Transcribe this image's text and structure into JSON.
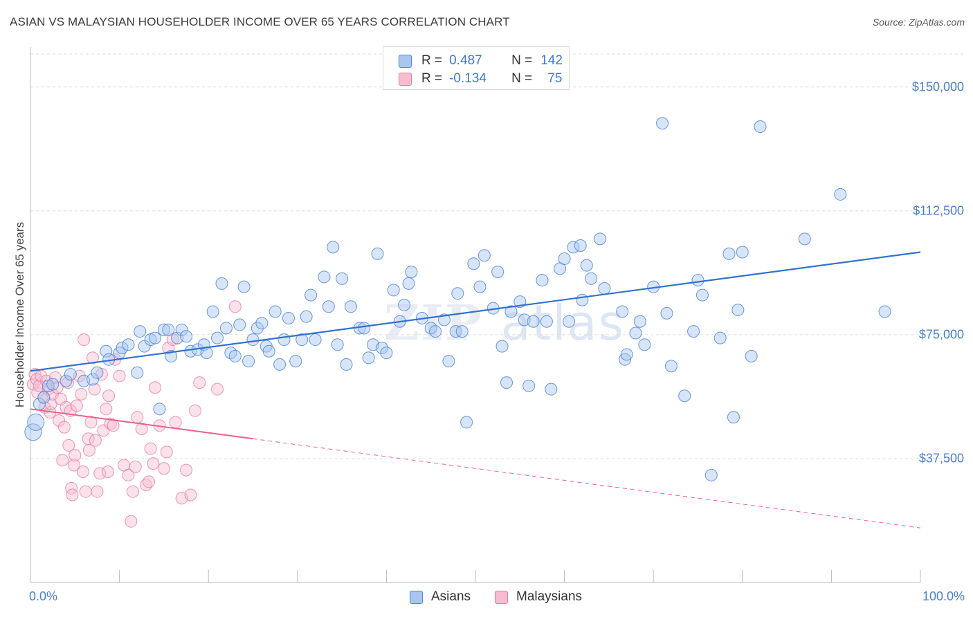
{
  "header": {
    "title": "ASIAN VS MALAYSIAN HOUSEHOLDER INCOME OVER 65 YEARS CORRELATION CHART",
    "source": "Source: ZipAtlas.com"
  },
  "watermark": {
    "zip": "ZIP",
    "atlas": "atlas"
  },
  "stats": [
    {
      "r_label": "R =",
      "r_value": "0.487",
      "n_label": "N =",
      "n_value": "142"
    },
    {
      "r_label": "R =",
      "r_value": "-0.134",
      "n_label": "N =",
      "n_value": "75"
    }
  ],
  "legend": {
    "asians": "Asians",
    "malaysians": "Malaysians"
  },
  "colors": {
    "asian_fill": "#a8c6ef",
    "asian_stroke": "#4a86d8",
    "asian_line": "#2f72d0",
    "malaysian_fill": "#f7bcd0",
    "malaysian_stroke": "#e87aa0",
    "malaysian_line": "#e8608c",
    "tick_text": "#4a7fd0",
    "grid": "#dcdcdc"
  },
  "chart_data": {
    "type": "scatter",
    "title": "ASIAN VS MALAYSIAN HOUSEHOLDER INCOME OVER 65 YEARS CORRELATION CHART",
    "xlabel": "",
    "ylabel": "Householder Income Over 65 years",
    "xlim": [
      0,
      100
    ],
    "ylim": [
      0,
      160000
    ],
    "x_tick_labels": [
      "0.0%",
      "100.0%"
    ],
    "y_ticks": [
      37500,
      75000,
      112500,
      150000
    ],
    "y_tick_labels": [
      "$37,500",
      "$75,000",
      "$112,500",
      "$150,000"
    ],
    "grid": "horizontal dashed",
    "legend_position": "bottom-center",
    "series": [
      {
        "name": "Asians",
        "r": 0.487,
        "n": 142,
        "trend": {
          "x": [
            0,
            100
          ],
          "y": [
            64000,
            100000
          ]
        },
        "points": [
          [
            0.3,
            45500
          ],
          [
            0.6,
            48500
          ],
          [
            1.0,
            54000
          ],
          [
            1.5,
            56000
          ],
          [
            2.0,
            59500
          ],
          [
            2.5,
            60000
          ],
          [
            4.0,
            61000
          ],
          [
            4.5,
            63000
          ],
          [
            6.0,
            61000
          ],
          [
            7.0,
            61500
          ],
          [
            7.5,
            63500
          ],
          [
            8.5,
            70000
          ],
          [
            8.8,
            67500
          ],
          [
            10.0,
            69500
          ],
          [
            10.3,
            71000
          ],
          [
            11.0,
            72000
          ],
          [
            12.0,
            63500
          ],
          [
            12.3,
            76000
          ],
          [
            12.8,
            71500
          ],
          [
            13.5,
            73500
          ],
          [
            14.0,
            74000
          ],
          [
            14.5,
            52500
          ],
          [
            15.0,
            76500
          ],
          [
            15.5,
            76500
          ],
          [
            15.8,
            68500
          ],
          [
            16.5,
            74000
          ],
          [
            17.0,
            76500
          ],
          [
            17.5,
            74500
          ],
          [
            18.0,
            70000
          ],
          [
            18.8,
            70500
          ],
          [
            19.5,
            72000
          ],
          [
            19.8,
            69500
          ],
          [
            20.5,
            82000
          ],
          [
            21.0,
            74000
          ],
          [
            21.5,
            90500
          ],
          [
            22.0,
            77000
          ],
          [
            22.5,
            69500
          ],
          [
            23.0,
            68500
          ],
          [
            23.5,
            78000
          ],
          [
            24.0,
            89500
          ],
          [
            24.5,
            67000
          ],
          [
            25.0,
            73500
          ],
          [
            25.5,
            77000
          ],
          [
            26.0,
            78500
          ],
          [
            26.5,
            71500
          ],
          [
            26.8,
            70000
          ],
          [
            27.5,
            82000
          ],
          [
            28.0,
            66000
          ],
          [
            28.5,
            73500
          ],
          [
            29.0,
            80000
          ],
          [
            29.8,
            67000
          ],
          [
            30.5,
            73500
          ],
          [
            31.0,
            80500
          ],
          [
            31.5,
            87000
          ],
          [
            32.0,
            73500
          ],
          [
            33.0,
            92500
          ],
          [
            33.5,
            83500
          ],
          [
            34.0,
            101500
          ],
          [
            34.5,
            72000
          ],
          [
            35.0,
            92000
          ],
          [
            35.5,
            66000
          ],
          [
            36.0,
            83500
          ],
          [
            37.0,
            77000
          ],
          [
            37.5,
            77000
          ],
          [
            38.0,
            68000
          ],
          [
            38.5,
            72000
          ],
          [
            39.0,
            99500
          ],
          [
            39.5,
            71000
          ],
          [
            40.0,
            69500
          ],
          [
            40.8,
            88500
          ],
          [
            41.5,
            79000
          ],
          [
            42.0,
            84000
          ],
          [
            42.5,
            90500
          ],
          [
            42.8,
            94000
          ],
          [
            44.0,
            80000
          ],
          [
            45.0,
            77000
          ],
          [
            45.5,
            76000
          ],
          [
            46.5,
            79500
          ],
          [
            47.0,
            67000
          ],
          [
            47.8,
            76000
          ],
          [
            48.0,
            87500
          ],
          [
            48.5,
            76000
          ],
          [
            49.0,
            48500
          ],
          [
            49.8,
            96500
          ],
          [
            50.5,
            89500
          ],
          [
            51.0,
            99000
          ],
          [
            52.0,
            83000
          ],
          [
            52.5,
            94000
          ],
          [
            53.0,
            71500
          ],
          [
            53.5,
            60500
          ],
          [
            54.0,
            82000
          ],
          [
            55.0,
            85000
          ],
          [
            55.5,
            79500
          ],
          [
            56.0,
            59500
          ],
          [
            56.5,
            79000
          ],
          [
            57.5,
            91500
          ],
          [
            58.0,
            79000
          ],
          [
            58.5,
            58500
          ],
          [
            59.5,
            95000
          ],
          [
            60.0,
            98000
          ],
          [
            60.5,
            79000
          ],
          [
            61.0,
            101500
          ],
          [
            61.8,
            102000
          ],
          [
            62.0,
            85500
          ],
          [
            62.5,
            96000
          ],
          [
            63.0,
            92000
          ],
          [
            64.0,
            104000
          ],
          [
            64.5,
            89000
          ],
          [
            66.5,
            82000
          ],
          [
            66.8,
            67500
          ],
          [
            67.0,
            69000
          ],
          [
            68.0,
            75500
          ],
          [
            68.5,
            79000
          ],
          [
            69.0,
            72000
          ],
          [
            70.0,
            89500
          ],
          [
            71.0,
            139000
          ],
          [
            71.5,
            81500
          ],
          [
            72.0,
            65500
          ],
          [
            73.5,
            56500
          ],
          [
            74.5,
            76000
          ],
          [
            75.0,
            91500
          ],
          [
            75.5,
            87000
          ],
          [
            76.5,
            32500
          ],
          [
            77.5,
            74000
          ],
          [
            78.5,
            99500
          ],
          [
            79.0,
            50000
          ],
          [
            79.5,
            82500
          ],
          [
            80.0,
            100000
          ],
          [
            81.0,
            68500
          ],
          [
            82.0,
            138000
          ],
          [
            87.0,
            104000
          ],
          [
            91.0,
            117500
          ],
          [
            96.0,
            82000
          ]
        ]
      },
      {
        "name": "Malaysians",
        "r": -0.134,
        "n": 75,
        "trend_solid": {
          "x": [
            0,
            25
          ],
          "y": [
            52500,
            43500
          ]
        },
        "trend_dashed": {
          "x": [
            25,
            100
          ],
          "y": [
            43500,
            16500
          ]
        },
        "points": [
          [
            0.3,
            60000
          ],
          [
            0.5,
            63000
          ],
          [
            0.7,
            61500
          ],
          [
            0.8,
            57500
          ],
          [
            1.0,
            59500
          ],
          [
            1.2,
            62500
          ],
          [
            1.5,
            56000
          ],
          [
            1.6,
            53000
          ],
          [
            1.8,
            61000
          ],
          [
            2.0,
            58500
          ],
          [
            2.2,
            51500
          ],
          [
            2.3,
            54000
          ],
          [
            2.5,
            57000
          ],
          [
            2.8,
            62000
          ],
          [
            3.0,
            59000
          ],
          [
            3.2,
            49000
          ],
          [
            3.4,
            55500
          ],
          [
            3.6,
            37000
          ],
          [
            3.8,
            47000
          ],
          [
            4.0,
            53000
          ],
          [
            4.2,
            60500
          ],
          [
            4.3,
            41500
          ],
          [
            4.5,
            52000
          ],
          [
            4.6,
            28500
          ],
          [
            4.7,
            26500
          ],
          [
            4.9,
            35500
          ],
          [
            5.0,
            38500
          ],
          [
            5.2,
            53500
          ],
          [
            5.5,
            62500
          ],
          [
            5.7,
            57000
          ],
          [
            5.9,
            33500
          ],
          [
            6.0,
            73500
          ],
          [
            6.2,
            27500
          ],
          [
            6.5,
            43500
          ],
          [
            6.6,
            40000
          ],
          [
            6.8,
            48500
          ],
          [
            7.0,
            68000
          ],
          [
            7.2,
            58500
          ],
          [
            7.3,
            43000
          ],
          [
            7.5,
            27500
          ],
          [
            7.8,
            33000
          ],
          [
            8.0,
            63000
          ],
          [
            8.2,
            46000
          ],
          [
            8.5,
            52500
          ],
          [
            8.7,
            33500
          ],
          [
            8.8,
            56500
          ],
          [
            9.0,
            48000
          ],
          [
            9.3,
            47500
          ],
          [
            9.5,
            67500
          ],
          [
            10.0,
            62500
          ],
          [
            10.5,
            35500
          ],
          [
            11.0,
            32500
          ],
          [
            11.3,
            18500
          ],
          [
            11.5,
            27500
          ],
          [
            11.8,
            35000
          ],
          [
            12.0,
            50000
          ],
          [
            12.5,
            46500
          ],
          [
            13.0,
            29500
          ],
          [
            13.3,
            30500
          ],
          [
            13.5,
            40500
          ],
          [
            13.8,
            36000
          ],
          [
            14.0,
            59000
          ],
          [
            14.5,
            47500
          ],
          [
            15.0,
            34500
          ],
          [
            15.3,
            39500
          ],
          [
            15.5,
            71000
          ],
          [
            16.0,
            73500
          ],
          [
            16.3,
            48500
          ],
          [
            17.0,
            25500
          ],
          [
            17.5,
            34000
          ],
          [
            18.0,
            26500
          ],
          [
            18.5,
            52000
          ],
          [
            19.0,
            60500
          ],
          [
            21.0,
            58500
          ],
          [
            23.0,
            83500
          ]
        ]
      }
    ]
  }
}
